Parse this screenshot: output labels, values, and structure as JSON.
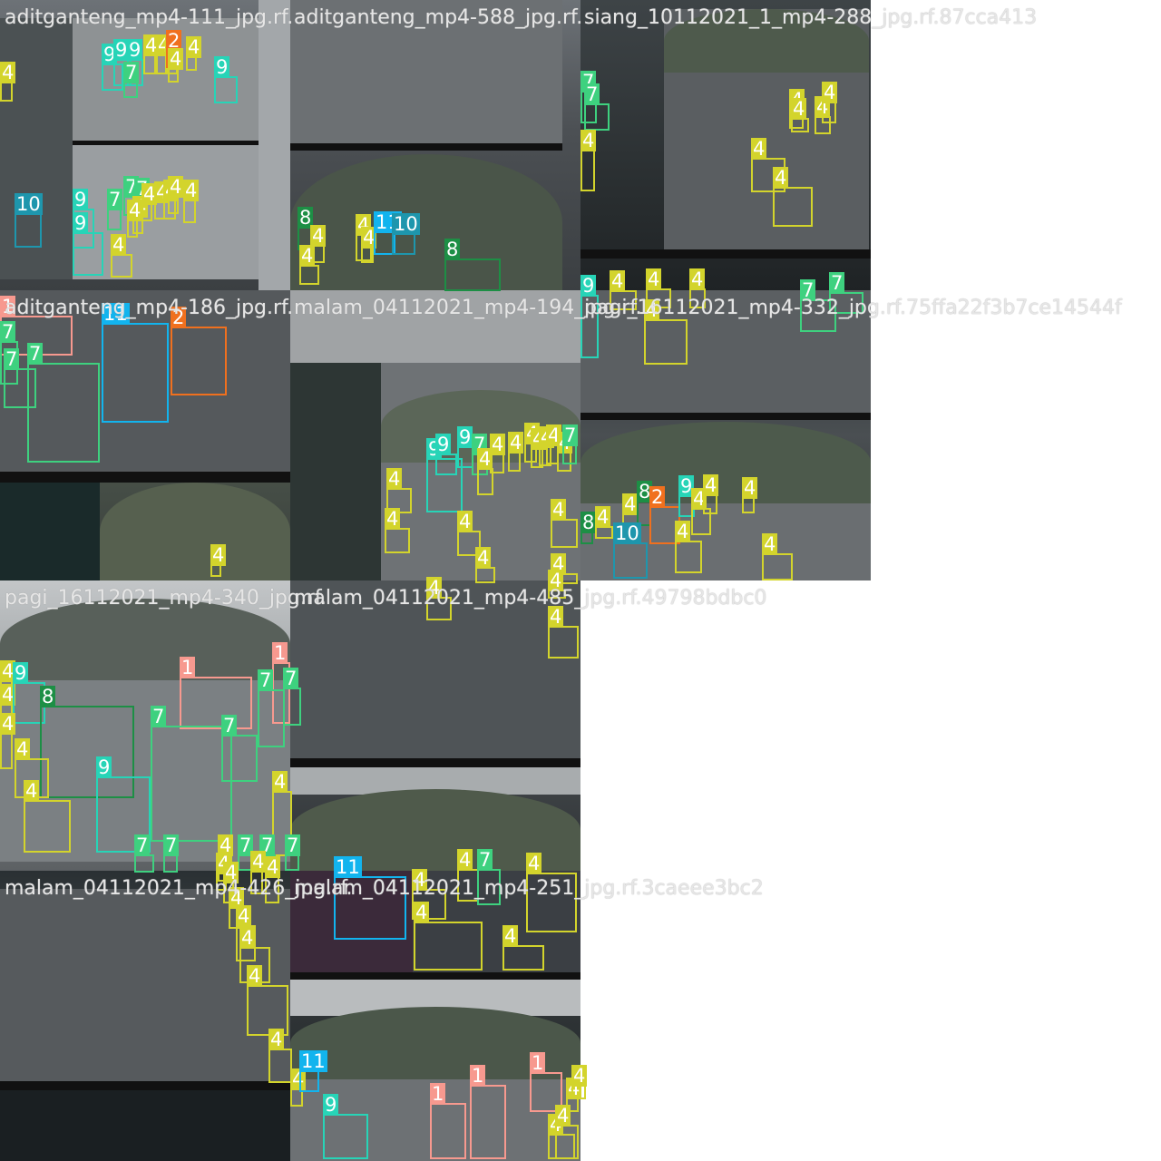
{
  "colors": {
    "1": "#f7998f",
    "2": "#f0701e",
    "4": "#d3d42c",
    "7": "#3ed17f",
    "8": "#1d8f45",
    "9": "#27d4b7",
    "10": "#1e96ad",
    "11": "#12b4ee"
  },
  "tiles": [
    {
      "name": "aditganteng_mp4-111_jpg.rf.",
      "style": "t-gray",
      "boxes": [
        [
          "4",
          0,
          90,
          14,
          22
        ],
        [
          "9",
          112,
          70,
          24,
          30
        ],
        [
          "9",
          125,
          65,
          20,
          30
        ],
        [
          "9",
          140,
          65,
          18,
          30
        ],
        [
          "7",
          136,
          90,
          16,
          18
        ],
        [
          "4",
          158,
          60,
          14,
          22
        ],
        [
          "4",
          172,
          60,
          14,
          22
        ],
        [
          "4",
          182,
          60,
          14,
          22
        ],
        [
          "2",
          183,
          55,
          14,
          20
        ],
        [
          "4",
          185,
          75,
          12,
          16
        ],
        [
          "4",
          205,
          62,
          12,
          16
        ],
        [
          "9",
          236,
          84,
          26,
          30
        ],
        [
          "10",
          16,
          235,
          30,
          38
        ],
        [
          "9",
          80,
          230,
          24,
          44
        ],
        [
          "9",
          80,
          256,
          34,
          48
        ],
        [
          "7",
          118,
          230,
          16,
          24
        ],
        [
          "7",
          136,
          216,
          14,
          22
        ],
        [
          "7",
          148,
          218,
          14,
          22
        ],
        [
          "4",
          146,
          238,
          12,
          20
        ],
        [
          "4",
          156,
          224,
          12,
          20
        ],
        [
          "4",
          170,
          222,
          12,
          20
        ],
        [
          "4",
          180,
          220,
          14,
          22
        ],
        [
          "4",
          185,
          216,
          12,
          20
        ],
        [
          "4",
          202,
          220,
          14,
          26
        ],
        [
          "4",
          122,
          280,
          24,
          26
        ],
        [
          "4",
          140,
          242,
          12,
          20
        ]
      ]
    },
    {
      "name": "aditganteng_mp4-588_jpg.rf.",
      "style": "t-gray",
      "boxes": [
        [
          "8",
          328,
          250,
          18,
          26
        ],
        [
          "4",
          342,
          270,
          16,
          20
        ],
        [
          "4",
          330,
          292,
          22,
          22
        ],
        [
          "4",
          392,
          258,
          18,
          30
        ],
        [
          "4",
          398,
          272,
          14,
          18
        ],
        [
          "11",
          412,
          255,
          24,
          26
        ],
        [
          "10",
          432,
          257,
          26,
          24
        ],
        [
          "8",
          490,
          285,
          62,
          36
        ]
      ]
    },
    {
      "name": "siang_10112021_1_mp4-288_jpg.rf.87cca413",
      "style": "t-dark",
      "boxes": [
        [
          "7",
          640,
          100,
          18,
          36
        ],
        [
          "7",
          644,
          114,
          28,
          30
        ],
        [
          "4",
          640,
          165,
          16,
          46
        ],
        [
          "4",
          870,
          120,
          16,
          22
        ],
        [
          "4",
          872,
          130,
          20,
          16
        ],
        [
          "4",
          898,
          128,
          18,
          20
        ],
        [
          "4",
          906,
          112,
          16,
          24
        ],
        [
          "4",
          828,
          174,
          38,
          38
        ],
        [
          "4",
          852,
          206,
          44,
          44
        ]
      ]
    },
    {
      "name": "aditganteng_mp4-186_jpg.rf.",
      "style": "t-green",
      "boxes": [
        [
          "1",
          0,
          348,
          80,
          44
        ],
        [
          "7",
          0,
          376,
          20,
          48
        ],
        [
          "7",
          4,
          406,
          36,
          44
        ],
        [
          "7",
          30,
          400,
          80,
          110
        ],
        [
          "11",
          112,
          356,
          74,
          110
        ],
        [
          "2",
          188,
          360,
          62,
          76
        ],
        [
          "4",
          232,
          622,
          12,
          14
        ]
      ]
    },
    {
      "name": "malam_04112021_mp4-194_jpg.rf.",
      "style": "t-dark",
      "boxes": [
        [
          "9",
          470,
          505,
          40,
          60
        ],
        [
          "9",
          480,
          500,
          24,
          24
        ],
        [
          "9",
          504,
          492,
          18,
          24
        ],
        [
          "7",
          520,
          500,
          18,
          24
        ],
        [
          "4",
          526,
          516,
          18,
          30
        ],
        [
          "4",
          540,
          500,
          16,
          22
        ],
        [
          "4",
          560,
          498,
          14,
          22
        ],
        [
          "4",
          578,
          488,
          14,
          22
        ],
        [
          "4",
          585,
          494,
          14,
          22
        ],
        [
          "4",
          594,
          492,
          14,
          22
        ],
        [
          "4",
          602,
          490,
          14,
          22
        ],
        [
          "4",
          614,
          498,
          16,
          22
        ],
        [
          "7",
          620,
          490,
          16,
          22
        ],
        [
          "4",
          426,
          538,
          28,
          28
        ],
        [
          "4",
          424,
          582,
          28,
          28
        ],
        [
          "4",
          504,
          585,
          26,
          28
        ],
        [
          "4",
          607,
          572,
          30,
          32
        ],
        [
          "4",
          524,
          625,
          22,
          18
        ],
        [
          "4",
          607,
          632,
          30,
          12
        ]
      ]
    },
    {
      "name": "pagi_16112021_mp4-332_jpg.rf.75ffa22f3b7ce14544f",
      "style": "t-night",
      "boxes": [
        [
          "9",
          640,
          325,
          20,
          70
        ],
        [
          "4",
          672,
          320,
          30,
          22
        ],
        [
          "4",
          712,
          318,
          28,
          22
        ],
        [
          "4",
          760,
          318,
          18,
          22
        ],
        [
          "7",
          882,
          330,
          40,
          36
        ],
        [
          "7",
          914,
          322,
          38,
          24
        ],
        [
          "4",
          710,
          352,
          48,
          50
        ],
        [
          "8",
          640,
          586,
          14,
          14
        ],
        [
          "4",
          656,
          580,
          20,
          14
        ],
        [
          "4",
          686,
          566,
          18,
          30
        ],
        [
          "8",
          702,
          552,
          16,
          28
        ],
        [
          "2",
          716,
          558,
          34,
          42
        ],
        [
          "9",
          748,
          546,
          18,
          24
        ],
        [
          "4",
          762,
          560,
          22,
          30
        ],
        [
          "4",
          775,
          545,
          16,
          22
        ],
        [
          "4",
          818,
          548,
          14,
          18
        ],
        [
          "10",
          676,
          598,
          38,
          40
        ],
        [
          "4",
          744,
          596,
          30,
          36
        ],
        [
          "4",
          840,
          610,
          34,
          30
        ]
      ]
    },
    {
      "name": "pagi_16112021_mp4-340_jpg.rf.",
      "style": "t-light",
      "boxes": [
        [
          "4",
          0,
          750,
          14,
          18
        ],
        [
          "4",
          0,
          776,
          14,
          18
        ],
        [
          "9",
          14,
          752,
          36,
          46
        ],
        [
          "8",
          44,
          778,
          104,
          102
        ],
        [
          "4",
          0,
          808,
          14,
          40
        ],
        [
          "4",
          16,
          836,
          38,
          44
        ],
        [
          "4",
          26,
          882,
          52,
          58
        ],
        [
          "1",
          198,
          746,
          80,
          58
        ],
        [
          "1",
          300,
          730,
          20,
          68
        ],
        [
          "7",
          284,
          760,
          30,
          64
        ],
        [
          "7",
          312,
          758,
          20,
          42
        ],
        [
          "7",
          166,
          800,
          90,
          128
        ],
        [
          "7",
          244,
          810,
          40,
          52
        ],
        [
          "9",
          106,
          856,
          60,
          84
        ],
        [
          "4",
          300,
          872,
          22,
          72
        ],
        [
          "7",
          148,
          942,
          22,
          20
        ],
        [
          "7",
          180,
          942,
          16,
          20
        ],
        [
          "4",
          240,
          942,
          16,
          30
        ],
        [
          "7",
          262,
          942,
          18,
          18
        ],
        [
          "7",
          286,
          942,
          18,
          18
        ],
        [
          "7",
          314,
          942,
          16,
          18
        ],
        [
          "4",
          276,
          960,
          14,
          26
        ],
        [
          "4",
          292,
          966,
          16,
          30
        ]
      ]
    },
    {
      "name": "malam_04112021_mp4-485_jpg.rf.49798bdbc0",
      "style": "t-night",
      "boxes": [
        [
          "4",
          470,
          658,
          28,
          26
        ],
        [
          "4",
          604,
          690,
          34,
          36
        ],
        [
          "4",
          604,
          650,
          20,
          10
        ],
        [
          "11",
          368,
          966,
          80,
          70
        ],
        [
          "4",
          454,
          980,
          38,
          34
        ],
        [
          "4",
          456,
          1016,
          76,
          54
        ],
        [
          "4",
          504,
          958,
          24,
          36
        ],
        [
          "7",
          526,
          958,
          26,
          40
        ],
        [
          "4",
          580,
          962,
          56,
          66
        ],
        [
          "4",
          554,
          1042,
          46,
          28
        ]
      ]
    },
    {
      "name": "malam_04112021_mp4-426_jpg.rf.",
      "style": "t-night",
      "boxes": [
        [
          "4",
          238,
          962,
          12,
          20
        ],
        [
          "4",
          246,
          972,
          12,
          24
        ],
        [
          "4",
          252,
          1000,
          22,
          24
        ],
        [
          "4",
          260,
          1020,
          22,
          40
        ],
        [
          "4",
          264,
          1044,
          34,
          40
        ],
        [
          "4",
          272,
          1086,
          46,
          56
        ],
        [
          "4",
          296,
          1156,
          26,
          38
        ]
      ]
    },
    {
      "name": "malam_04112021_mp4-251_jpg.rf.3caeee3bc2",
      "style": "t-dark",
      "boxes": [
        [
          "4",
          320,
          1200,
          14,
          20
        ],
        [
          "11",
          330,
          1180,
          22,
          24
        ],
        [
          "9",
          356,
          1228,
          50,
          50
        ],
        [
          "1",
          474,
          1216,
          40,
          62
        ],
        [
          "1",
          518,
          1196,
          40,
          82
        ],
        [
          "1",
          584,
          1182,
          36,
          44
        ],
        [
          "4",
          604,
          1250,
          30,
          28
        ],
        [
          "4",
          612,
          1240,
          26,
          38
        ],
        [
          "4",
          624,
          1210,
          14,
          16
        ],
        [
          "4",
          630,
          1196,
          16,
          16
        ]
      ]
    }
  ]
}
